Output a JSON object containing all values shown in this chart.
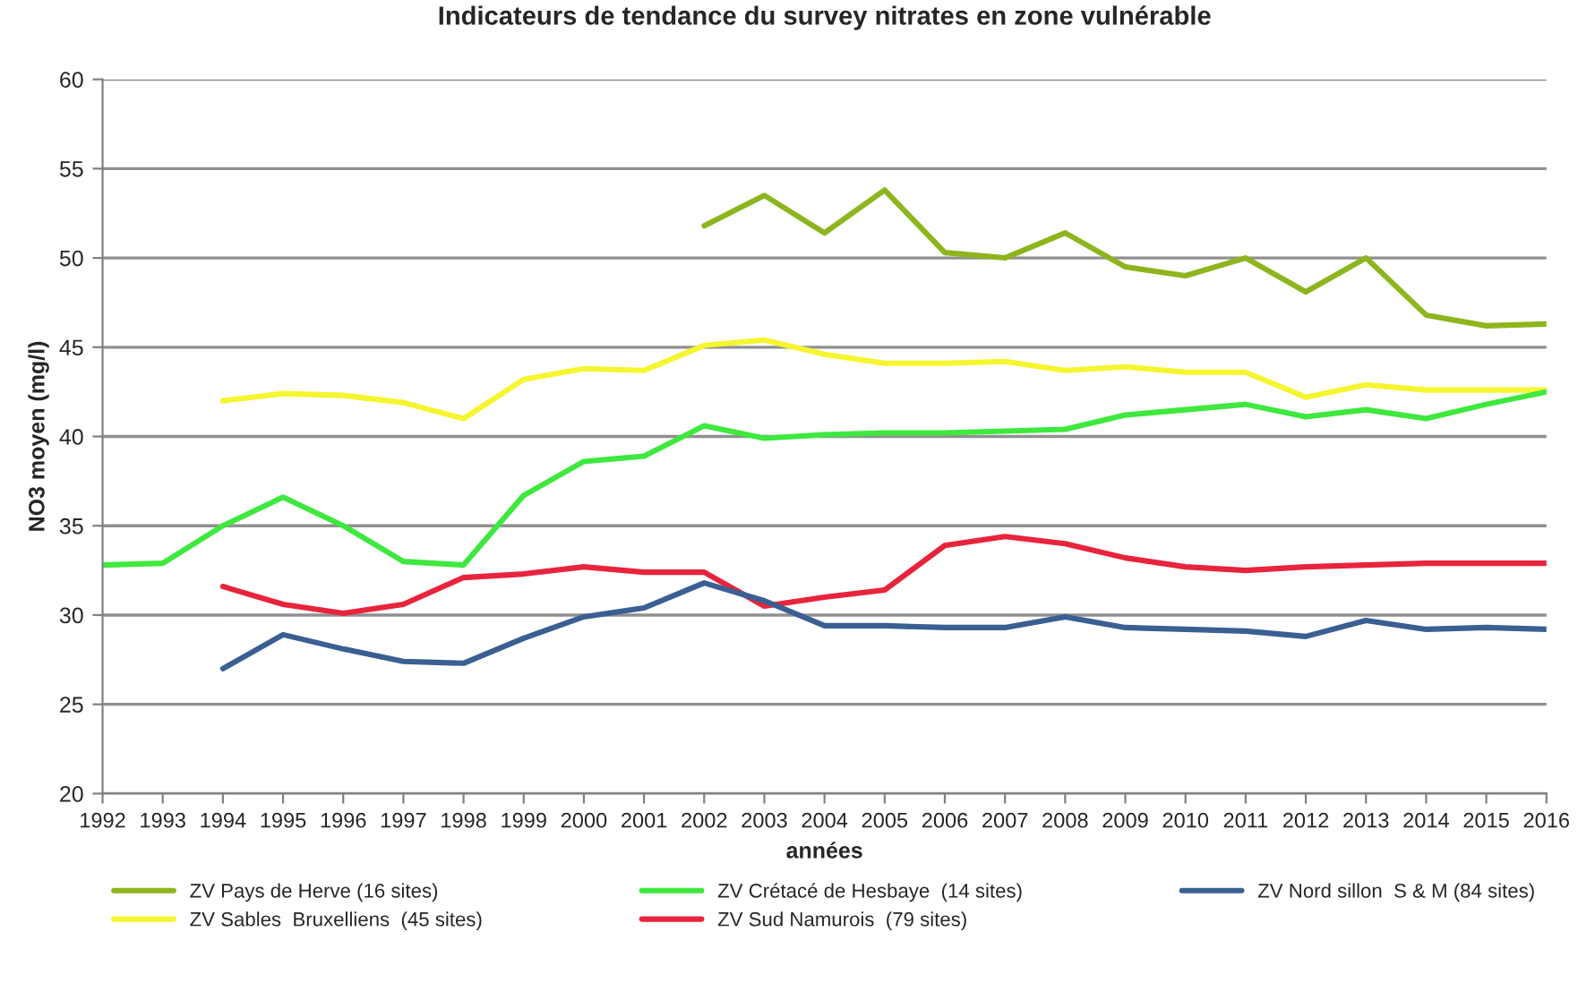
{
  "chart_data": {
    "type": "line",
    "title": "Indicateurs de tendance du survey nitrates en zone vulnérable",
    "xlabel": "années",
    "ylabel": "NO3 moyen (mg/l)",
    "xlim": [
      1992,
      2016
    ],
    "xticks": [
      1992,
      1993,
      1994,
      1995,
      1996,
      1997,
      1998,
      1999,
      2000,
      2001,
      2002,
      2003,
      2004,
      2005,
      2006,
      2007,
      2008,
      2009,
      2010,
      2011,
      2012,
      2013,
      2014,
      2015,
      2016
    ],
    "ylim": [
      20,
      60
    ],
    "yticks": [
      20,
      25,
      30,
      35,
      40,
      45,
      50,
      55,
      60
    ],
    "grid": "y",
    "legend": "bottom",
    "marker": "none",
    "line_style": "solid",
    "series": [
      {
        "name": "ZV Pays de Herve (16 sites)",
        "color": "#8db51e",
        "x": [
          2002,
          2003,
          2004,
          2005,
          2006,
          2007,
          2008,
          2009,
          2010,
          2011,
          2012,
          2013,
          2014,
          2015,
          2016
        ],
        "values": [
          51.8,
          53.5,
          51.4,
          53.8,
          50.3,
          50.0,
          51.4,
          49.5,
          49.0,
          50.0,
          48.1,
          50.0,
          46.8,
          46.2,
          46.3
        ]
      },
      {
        "name": "ZV Sables  Bruxelliens  (45 sites)",
        "color": "#f5f530",
        "x": [
          1994,
          1995,
          1996,
          1997,
          1998,
          1999,
          2000,
          2001,
          2002,
          2003,
          2004,
          2005,
          2006,
          2007,
          2008,
          2009,
          2010,
          2011,
          2012,
          2013,
          2014,
          2015,
          2016
        ],
        "values": [
          42.0,
          42.4,
          42.3,
          41.9,
          41.0,
          43.2,
          43.8,
          43.7,
          45.1,
          45.4,
          44.6,
          44.1,
          44.1,
          44.2,
          43.7,
          43.9,
          43.6,
          43.6,
          42.2,
          42.9,
          42.6,
          42.6,
          42.6
        ]
      },
      {
        "name": "ZV Crétacé de Hesbaye  (14 sites)",
        "color": "#3ee83e",
        "x": [
          1992,
          1993,
          1994,
          1995,
          1996,
          1997,
          1998,
          1999,
          2000,
          2001,
          2002,
          2003,
          2004,
          2005,
          2006,
          2007,
          2008,
          2009,
          2010,
          2011,
          2012,
          2013,
          2014,
          2015,
          2016
        ],
        "values": [
          32.8,
          32.9,
          35.0,
          36.6,
          35.0,
          33.0,
          32.8,
          36.7,
          38.6,
          38.9,
          40.6,
          39.9,
          40.1,
          40.2,
          40.2,
          40.3,
          40.4,
          41.2,
          41.5,
          41.8,
          41.1,
          41.5,
          41.0,
          41.8,
          42.5
        ]
      },
      {
        "name": "ZV Sud Namurois  (79 sites)",
        "color": "#e8243c",
        "x": [
          1994,
          1995,
          1996,
          1997,
          1998,
          1999,
          2000,
          2001,
          2002,
          2003,
          2004,
          2005,
          2006,
          2007,
          2008,
          2009,
          2010,
          2011,
          2012,
          2013,
          2014,
          2015,
          2016
        ],
        "values": [
          31.6,
          30.6,
          30.1,
          30.6,
          32.1,
          32.3,
          32.7,
          32.4,
          32.4,
          30.5,
          31.0,
          31.4,
          33.9,
          34.4,
          34.0,
          33.2,
          32.7,
          32.5,
          32.7,
          32.8,
          32.9,
          32.9,
          32.9
        ]
      },
      {
        "name": "ZV Nord sillon  S & M (84 sites)",
        "color": "#3a5f92",
        "x": [
          1994,
          1995,
          1996,
          1997,
          1998,
          1999,
          2000,
          2001,
          2002,
          2003,
          2004,
          2005,
          2006,
          2007,
          2008,
          2009,
          2010,
          2011,
          2012,
          2013,
          2014,
          2015,
          2016
        ],
        "values": [
          27.0,
          28.9,
          28.1,
          27.4,
          27.3,
          28.7,
          29.9,
          30.4,
          31.8,
          30.8,
          29.4,
          29.4,
          29.3,
          29.3,
          29.9,
          29.3,
          29.2,
          29.1,
          28.8,
          29.7,
          29.2,
          29.3,
          29.2
        ]
      }
    ]
  }
}
